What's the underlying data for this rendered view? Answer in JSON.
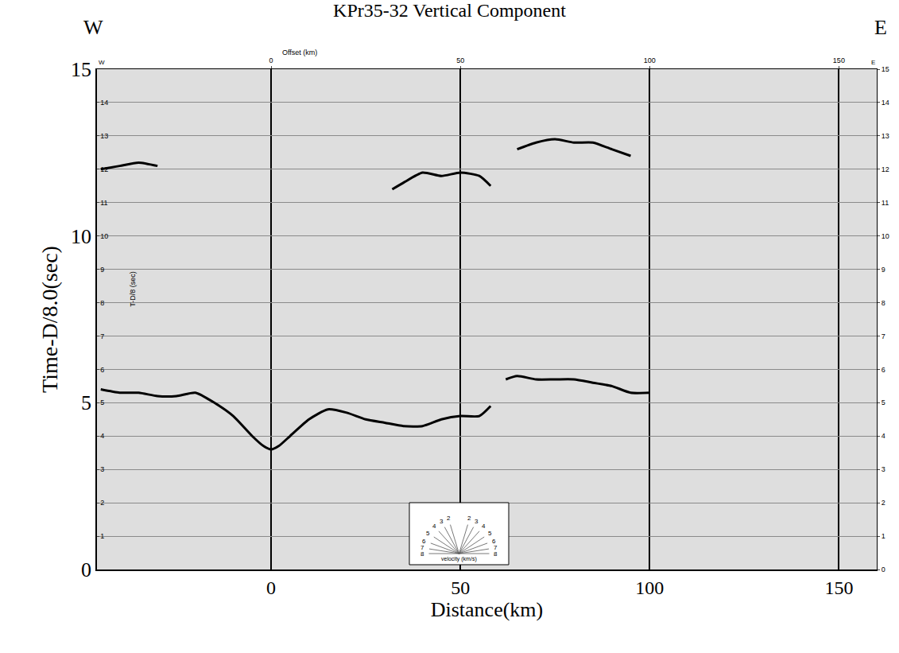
{
  "chart_data": {
    "type": "line",
    "title": "KPr35-32 Vertical Component",
    "xlabel": "Distance(km)",
    "ylabel": "Time-D/8.0(sec)",
    "xlim": [
      -46,
      160
    ],
    "ylim": [
      0,
      15
    ],
    "xticks": [
      0,
      50,
      100,
      150
    ],
    "yticks": [
      0,
      5,
      10,
      15
    ],
    "grid": true,
    "corner_labels": {
      "west": "W",
      "east": "E"
    },
    "top_axis": {
      "label": "Offset (km)",
      "ticks": [
        0,
        50,
        100,
        150
      ]
    },
    "inner_axis": {
      "label": "T-D/8 (sec)",
      "ticks": [
        0,
        1,
        2,
        3,
        4,
        5,
        6,
        7,
        8,
        9,
        10,
        11,
        12,
        13,
        14,
        15
      ]
    },
    "velocity_key": {
      "label": "velocity (km/s)",
      "velocities": [
        2,
        3,
        4,
        5,
        6,
        7,
        8
      ]
    },
    "series": [
      {
        "color": "#000000",
        "x": [
          -45,
          -40,
          -35,
          -30,
          -25,
          -20,
          -15,
          -10,
          -5,
          -2,
          0,
          2,
          5,
          10,
          15,
          20,
          25,
          30,
          35,
          40,
          45,
          50,
          55,
          58
        ],
        "values": [
          5.4,
          5.3,
          5.3,
          5.2,
          5.2,
          5.3,
          5.0,
          4.6,
          4.0,
          3.7,
          3.6,
          3.7,
          4.0,
          4.5,
          4.8,
          4.7,
          4.5,
          4.4,
          4.3,
          4.3,
          4.5,
          4.6,
          4.6,
          4.9
        ]
      },
      {
        "color": "#000000",
        "x": [
          62,
          65,
          70,
          75,
          80,
          85,
          90,
          95,
          100
        ],
        "values": [
          5.7,
          5.8,
          5.7,
          5.7,
          5.7,
          5.6,
          5.5,
          5.3,
          5.3
        ]
      },
      {
        "color": "#000000",
        "x": [
          32,
          35,
          40,
          45,
          50,
          55,
          58
        ],
        "values": [
          11.4,
          11.6,
          11.9,
          11.8,
          11.9,
          11.8,
          11.5
        ]
      },
      {
        "color": "#000000",
        "x": [
          65,
          70,
          75,
          80,
          85,
          90,
          95
        ],
        "values": [
          12.6,
          12.8,
          12.9,
          12.8,
          12.8,
          12.6,
          12.4
        ]
      },
      {
        "color": "#000000",
        "x": [
          -45,
          -40,
          -35,
          -30
        ],
        "values": [
          12.0,
          12.1,
          12.2,
          12.1
        ]
      }
    ]
  }
}
